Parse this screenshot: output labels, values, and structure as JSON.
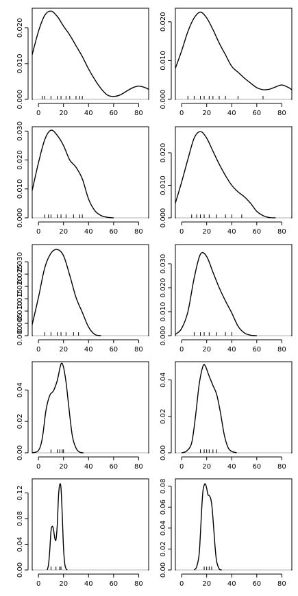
{
  "chart_data": [
    {
      "type": "line",
      "panel": "row1-col1",
      "xlim": [
        -5,
        88
      ],
      "ylim": [
        0,
        0.0255
      ],
      "x_ticks": [
        0,
        20,
        40,
        60,
        80
      ],
      "y_ticks": [
        0,
        0.01,
        0.02
      ],
      "x_tick_labels": [
        "0",
        "20",
        "40",
        "60",
        "80"
      ],
      "y_tick_labels": [
        "0.000",
        "0.010",
        "0.020"
      ],
      "rug": [
        3,
        5,
        10,
        15,
        18,
        22,
        25,
        30,
        33,
        35
      ],
      "series": [
        {
          "x": [
            -5,
            0,
            5,
            10,
            15,
            20,
            25,
            30,
            35,
            40,
            45,
            50,
            55,
            60,
            65,
            70,
            75,
            80,
            85,
            88
          ],
          "y": [
            0.0125,
            0.019,
            0.0235,
            0.0247,
            0.0232,
            0.0205,
            0.018,
            0.015,
            0.012,
            0.0085,
            0.0055,
            0.003,
            0.0012,
            0.0008,
            0.0012,
            0.0022,
            0.0032,
            0.0037,
            0.0033,
            0.0028
          ]
        }
      ]
    },
    {
      "type": "line",
      "panel": "row1-col2",
      "xlim": [
        -5,
        88
      ],
      "ylim": [
        0,
        0.0235
      ],
      "x_ticks": [
        0,
        20,
        40,
        60,
        80
      ],
      "y_ticks": [
        0,
        0.01,
        0.02
      ],
      "x_tick_labels": [
        "0",
        "20",
        "40",
        "60",
        "80"
      ],
      "y_tick_labels": [
        "0.000",
        "0.010",
        "0.020"
      ],
      "rug": [
        5,
        10,
        15,
        18,
        22,
        25,
        30,
        35,
        45,
        65
      ],
      "series": [
        {
          "x": [
            -5,
            0,
            5,
            10,
            15,
            20,
            25,
            30,
            35,
            40,
            45,
            50,
            55,
            60,
            65,
            70,
            75,
            80,
            85,
            88
          ],
          "y": [
            0.008,
            0.0125,
            0.0175,
            0.021,
            0.0225,
            0.021,
            0.018,
            0.0145,
            0.0115,
            0.0085,
            0.007,
            0.0055,
            0.0042,
            0.003,
            0.0025,
            0.0026,
            0.0032,
            0.0037,
            0.0031,
            0.0025
          ]
        }
      ]
    },
    {
      "type": "line",
      "panel": "row2-col1",
      "xlim": [
        -5,
        88
      ],
      "ylim": [
        0,
        0.0315
      ],
      "x_ticks": [
        0,
        20,
        40,
        60,
        80
      ],
      "y_ticks": [
        0,
        0.01,
        0.02,
        0.03
      ],
      "x_tick_labels": [
        "0",
        "20",
        "40",
        "60",
        "80"
      ],
      "y_tick_labels": [
        "0.000",
        "0.010",
        "0.020",
        "0.030"
      ],
      "rug": [
        5,
        8,
        10,
        15,
        18,
        22,
        28,
        33,
        35
      ],
      "series": [
        {
          "x": [
            -5,
            0,
            5,
            10,
            15,
            20,
            25,
            30,
            35,
            40,
            45,
            50,
            55,
            60
          ],
          "y": [
            0.0095,
            0.019,
            0.027,
            0.0303,
            0.0285,
            0.025,
            0.02,
            0.0175,
            0.0135,
            0.0065,
            0.0025,
            0.0008,
            0.0002,
            0
          ]
        }
      ]
    },
    {
      "type": "line",
      "panel": "row2-col2",
      "xlim": [
        -5,
        88
      ],
      "ylim": [
        0,
        0.028
      ],
      "x_ticks": [
        0,
        20,
        40,
        60,
        80
      ],
      "y_ticks": [
        0,
        0.01,
        0.02
      ],
      "x_tick_labels": [
        "0",
        "20",
        "40",
        "60",
        "80"
      ],
      "y_tick_labels": [
        "0.000",
        "0.010",
        "0.020"
      ],
      "rug": [
        8,
        12,
        15,
        18,
        22,
        28,
        35,
        40,
        48
      ],
      "series": [
        {
          "x": [
            -5,
            0,
            5,
            10,
            15,
            20,
            25,
            30,
            35,
            40,
            45,
            50,
            55,
            60,
            65,
            70,
            75
          ],
          "y": [
            0.0045,
            0.011,
            0.018,
            0.0245,
            0.0265,
            0.0245,
            0.0205,
            0.0165,
            0.013,
            0.01,
            0.008,
            0.0065,
            0.0045,
            0.002,
            0.0007,
            0.0001,
            0
          ]
        }
      ]
    },
    {
      "type": "line",
      "panel": "row3-col1",
      "xlim": [
        -5,
        88
      ],
      "ylim": [
        0,
        0.037
      ],
      "x_ticks": [
        0,
        20,
        40,
        60,
        80
      ],
      "y_ticks": [
        0,
        0.005,
        0.01,
        0.015,
        0.02,
        0.025,
        0.03
      ],
      "x_tick_labels": [
        "0",
        "20",
        "40",
        "60",
        "80"
      ],
      "y_tick_labels": [
        "0.000",
        "0.005",
        "0.010",
        "0.015",
        "0.020",
        "0.025",
        "0.030"
      ],
      "rug": [
        5,
        10,
        15,
        18,
        22,
        28,
        32
      ],
      "series": [
        {
          "x": [
            -5,
            0,
            5,
            10,
            15,
            20,
            25,
            30,
            35,
            40,
            45,
            50
          ],
          "y": [
            0.0045,
            0.0155,
            0.0275,
            0.0335,
            0.035,
            0.0325,
            0.0245,
            0.0155,
            0.0095,
            0.0035,
            0.0005,
            0
          ]
        }
      ]
    },
    {
      "type": "line",
      "panel": "row3-col2",
      "xlim": [
        -5,
        88
      ],
      "ylim": [
        0,
        0.038
      ],
      "x_ticks": [
        0,
        20,
        40,
        60,
        80
      ],
      "y_ticks": [
        0,
        0.01,
        0.02,
        0.03
      ],
      "x_tick_labels": [
        "0",
        "20",
        "40",
        "60",
        "80"
      ],
      "y_tick_labels": [
        "0.000",
        "0.010",
        "0.020",
        "0.030"
      ],
      "rug": [
        10,
        15,
        18,
        22,
        28,
        35,
        40
      ],
      "series": [
        {
          "x": [
            -5,
            0,
            5,
            10,
            15,
            20,
            25,
            30,
            35,
            40,
            45,
            50,
            55,
            60
          ],
          "y": [
            0.0005,
            0.003,
            0.01,
            0.024,
            0.034,
            0.033,
            0.0265,
            0.02,
            0.0145,
            0.0095,
            0.004,
            0.0012,
            0.0002,
            0
          ]
        }
      ]
    },
    {
      "type": "line",
      "panel": "row4-col1",
      "xlim": [
        -5,
        88
      ],
      "ylim": [
        0,
        0.058
      ],
      "x_ticks": [
        0,
        20,
        40,
        60,
        80
      ],
      "y_ticks": [
        0,
        0.02,
        0.04
      ],
      "x_tick_labels": [
        "0",
        "20",
        "40",
        "60",
        "80"
      ],
      "y_tick_labels": [
        "0.00",
        "0.02",
        "0.04"
      ],
      "rug": [
        10,
        15,
        17,
        19,
        20
      ],
      "series": [
        {
          "x": [
            -5,
            0,
            3,
            6,
            9,
            12,
            15,
            18,
            20,
            22,
            24,
            27,
            30,
            33,
            36
          ],
          "y": [
            0,
            0.0015,
            0.009,
            0.027,
            0.0365,
            0.0395,
            0.046,
            0.0565,
            0.0545,
            0.045,
            0.031,
            0.011,
            0.003,
            0.0004,
            0
          ]
        }
      ]
    },
    {
      "type": "line",
      "panel": "row4-col2",
      "xlim": [
        -5,
        88
      ],
      "ylim": [
        0,
        0.05
      ],
      "x_ticks": [
        0,
        20,
        40,
        60,
        80
      ],
      "y_ticks": [
        0,
        0.02,
        0.04
      ],
      "x_tick_labels": [
        "0",
        "20",
        "40",
        "60",
        "80"
      ],
      "y_tick_labels": [
        "0.00",
        "0.02",
        "0.04"
      ],
      "rug": [
        15,
        18,
        20,
        22,
        25,
        28
      ],
      "series": [
        {
          "x": [
            0,
            4,
            8,
            11,
            14,
            17,
            19,
            22,
            25,
            28,
            31,
            34,
            37,
            40,
            44
          ],
          "y": [
            0,
            0.001,
            0.0055,
            0.0195,
            0.0375,
            0.0475,
            0.0475,
            0.042,
            0.037,
            0.032,
            0.022,
            0.01,
            0.003,
            0.0008,
            0
          ]
        }
      ]
    },
    {
      "type": "line",
      "panel": "row5-col1",
      "xlim": [
        -5,
        88
      ],
      "ylim": [
        0,
        0.142
      ],
      "x_ticks": [
        0,
        20,
        40,
        60,
        80
      ],
      "y_ticks": [
        0,
        0.04,
        0.08,
        0.12
      ],
      "x_tick_labels": [
        "0",
        "20",
        "40",
        "60",
        "80"
      ],
      "y_tick_labels": [
        "0.00",
        "0.04",
        "0.08",
        "0.12"
      ],
      "rug": [
        10,
        14,
        17,
        18
      ],
      "series": [
        {
          "x": [
            7,
            8,
            9,
            10,
            11,
            12,
            13,
            14,
            15,
            16,
            17,
            18,
            19,
            20,
            21,
            22,
            23
          ],
          "y": [
            0,
            0.008,
            0.03,
            0.06,
            0.068,
            0.063,
            0.05,
            0.047,
            0.07,
            0.115,
            0.133,
            0.128,
            0.085,
            0.035,
            0.01,
            0.002,
            0
          ]
        }
      ]
    },
    {
      "type": "line",
      "panel": "row5-col2",
      "xlim": [
        -5,
        88
      ],
      "ylim": [
        0,
        0.087
      ],
      "x_ticks": [
        0,
        20,
        40,
        60,
        80
      ],
      "y_ticks": [
        0,
        0.02,
        0.04,
        0.06,
        0.08
      ],
      "x_tick_labels": [
        "0",
        "20",
        "40",
        "60",
        "80"
      ],
      "y_tick_labels": [
        "0.00",
        "0.02",
        "0.04",
        "0.06",
        "0.08"
      ],
      "rug": [
        18,
        20,
        22,
        24
      ],
      "series": [
        {
          "x": [
            10,
            12,
            14,
            15,
            16,
            17,
            18,
            19,
            20,
            21,
            22,
            23,
            24,
            25,
            26,
            27,
            28,
            30,
            32
          ],
          "y": [
            0,
            0.003,
            0.015,
            0.035,
            0.058,
            0.075,
            0.081,
            0.082,
            0.078,
            0.072,
            0.071,
            0.069,
            0.063,
            0.05,
            0.033,
            0.018,
            0.008,
            0.001,
            0
          ]
        }
      ]
    }
  ]
}
